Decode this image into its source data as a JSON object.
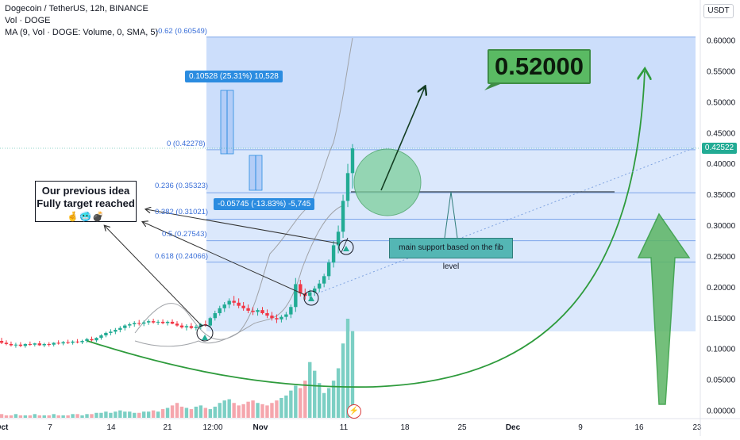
{
  "chart_data": {
    "type": "candlestick",
    "title": "Dogecoin / TetherUS, 12h, BINANCE",
    "legend_lines": [
      "Dogecoin / TetherUS, 12h, BINANCE",
      "Vol · DOGE",
      "MA (9, Vol · DOGE: Volume, 0, SMA, 5)"
    ],
    "currency": "USDT",
    "ylim": [
      0,
      0.62
    ],
    "y_ticks": [
      "0.60000",
      "0.55000",
      "0.50000",
      "0.45000",
      "0.40000",
      "0.35000",
      "0.30000",
      "0.25000",
      "0.20000",
      "0.15000",
      "0.10000",
      "0.05000",
      "0.00000"
    ],
    "x_ticks": [
      "Oct",
      "7",
      "14",
      "21",
      "12:00",
      "Nov",
      "11",
      "18",
      "25",
      "Dec",
      "9",
      "16",
      "23"
    ],
    "last_price": "0.42522",
    "target_label": "0.52000",
    "fib_levels": [
      {
        "label": "-0.62 (0.60549)",
        "price": 0.60549
      },
      {
        "label": "0 (0.42278)",
        "price": 0.42278
      },
      {
        "label": "0.236 (0.35323)",
        "price": 0.35323
      },
      {
        "label": "0.382 (0.31021)",
        "price": 0.31021
      },
      {
        "label": "0.5 (0.27543)",
        "price": 0.27543
      },
      {
        "label": "0.618 (0.24066)",
        "price": 0.24066
      }
    ],
    "measure_up": "0.10528 (25.31%) 10,528",
    "measure_down": "-0.05745 (-13.83%) -5,745",
    "note_lines": [
      "Our previous idea",
      "Fully target reached"
    ],
    "note_emoji": "🤞🥶💣",
    "support_note": "main support based on the fib level",
    "candles": [
      [
        0.113,
        0.118,
        0.108,
        0.11
      ],
      [
        0.11,
        0.114,
        0.106,
        0.108
      ],
      [
        0.108,
        0.112,
        0.104,
        0.106
      ],
      [
        0.106,
        0.11,
        0.102,
        0.107
      ],
      [
        0.107,
        0.111,
        0.103,
        0.105
      ],
      [
        0.105,
        0.109,
        0.102,
        0.108
      ],
      [
        0.108,
        0.112,
        0.105,
        0.107
      ],
      [
        0.107,
        0.11,
        0.104,
        0.109
      ],
      [
        0.109,
        0.113,
        0.105,
        0.106
      ],
      [
        0.106,
        0.11,
        0.103,
        0.108
      ],
      [
        0.108,
        0.111,
        0.104,
        0.107
      ],
      [
        0.107,
        0.111,
        0.104,
        0.11
      ],
      [
        0.11,
        0.114,
        0.107,
        0.109
      ],
      [
        0.109,
        0.113,
        0.106,
        0.111
      ],
      [
        0.111,
        0.115,
        0.108,
        0.11
      ],
      [
        0.11,
        0.114,
        0.107,
        0.112
      ],
      [
        0.112,
        0.116,
        0.109,
        0.111
      ],
      [
        0.111,
        0.115,
        0.108,
        0.113
      ],
      [
        0.113,
        0.118,
        0.11,
        0.116
      ],
      [
        0.116,
        0.12,
        0.112,
        0.114
      ],
      [
        0.114,
        0.119,
        0.111,
        0.118
      ],
      [
        0.118,
        0.124,
        0.115,
        0.122
      ],
      [
        0.122,
        0.128,
        0.119,
        0.126
      ],
      [
        0.126,
        0.132,
        0.122,
        0.128
      ],
      [
        0.128,
        0.134,
        0.124,
        0.131
      ],
      [
        0.131,
        0.137,
        0.127,
        0.134
      ],
      [
        0.134,
        0.14,
        0.13,
        0.138
      ],
      [
        0.138,
        0.143,
        0.134,
        0.14
      ],
      [
        0.14,
        0.145,
        0.136,
        0.142
      ],
      [
        0.142,
        0.147,
        0.138,
        0.141
      ],
      [
        0.141,
        0.146,
        0.137,
        0.143
      ],
      [
        0.143,
        0.148,
        0.139,
        0.145
      ],
      [
        0.145,
        0.149,
        0.141,
        0.143
      ],
      [
        0.143,
        0.147,
        0.139,
        0.144
      ],
      [
        0.144,
        0.148,
        0.14,
        0.142
      ],
      [
        0.142,
        0.146,
        0.138,
        0.144
      ],
      [
        0.144,
        0.148,
        0.14,
        0.141
      ],
      [
        0.141,
        0.145,
        0.136,
        0.138
      ],
      [
        0.138,
        0.142,
        0.133,
        0.135
      ],
      [
        0.135,
        0.14,
        0.13,
        0.137
      ],
      [
        0.137,
        0.142,
        0.132,
        0.134
      ],
      [
        0.134,
        0.139,
        0.13,
        0.136
      ],
      [
        0.136,
        0.142,
        0.132,
        0.14
      ],
      [
        0.14,
        0.146,
        0.136,
        0.138
      ],
      [
        0.138,
        0.152,
        0.135,
        0.15
      ],
      [
        0.15,
        0.162,
        0.146,
        0.158
      ],
      [
        0.158,
        0.17,
        0.154,
        0.166
      ],
      [
        0.166,
        0.176,
        0.16,
        0.172
      ],
      [
        0.172,
        0.182,
        0.166,
        0.178
      ],
      [
        0.178,
        0.186,
        0.17,
        0.175
      ],
      [
        0.175,
        0.182,
        0.166,
        0.17
      ],
      [
        0.17,
        0.176,
        0.162,
        0.166
      ],
      [
        0.166,
        0.172,
        0.158,
        0.162
      ],
      [
        0.162,
        0.168,
        0.155,
        0.16
      ],
      [
        0.16,
        0.166,
        0.154,
        0.163
      ],
      [
        0.163,
        0.168,
        0.156,
        0.158
      ],
      [
        0.158,
        0.164,
        0.15,
        0.154
      ],
      [
        0.154,
        0.16,
        0.146,
        0.15
      ],
      [
        0.15,
        0.156,
        0.142,
        0.148
      ],
      [
        0.148,
        0.155,
        0.143,
        0.152
      ],
      [
        0.152,
        0.16,
        0.147,
        0.156
      ],
      [
        0.156,
        0.172,
        0.15,
        0.168
      ],
      [
        0.168,
        0.215,
        0.16,
        0.205
      ],
      [
        0.205,
        0.212,
        0.185,
        0.19
      ],
      [
        0.19,
        0.198,
        0.18,
        0.186
      ],
      [
        0.186,
        0.196,
        0.178,
        0.192
      ],
      [
        0.192,
        0.202,
        0.186,
        0.198
      ],
      [
        0.198,
        0.212,
        0.192,
        0.206
      ],
      [
        0.206,
        0.222,
        0.2,
        0.218
      ],
      [
        0.218,
        0.245,
        0.212,
        0.24
      ],
      [
        0.24,
        0.275,
        0.232,
        0.268
      ],
      [
        0.268,
        0.3,
        0.255,
        0.29
      ],
      [
        0.29,
        0.35,
        0.28,
        0.34
      ],
      [
        0.34,
        0.4,
        0.33,
        0.385
      ],
      [
        0.385,
        0.432,
        0.36,
        0.425
      ]
    ],
    "volumes": [
      3,
      2,
      2,
      3,
      2,
      2,
      2,
      3,
      2,
      2,
      2,
      3,
      2,
      2,
      2,
      3,
      3,
      2,
      3,
      3,
      4,
      4,
      5,
      4,
      5,
      6,
      5,
      5,
      4,
      4,
      5,
      5,
      6,
      5,
      7,
      8,
      10,
      12,
      9,
      8,
      7,
      9,
      10,
      8,
      7,
      9,
      12,
      14,
      15,
      12,
      10,
      11,
      13,
      14,
      12,
      11,
      10,
      12,
      14,
      16,
      18,
      22,
      26,
      24,
      30,
      45,
      38,
      28,
      20,
      24,
      30,
      40,
      60,
      80,
      70
    ]
  }
}
